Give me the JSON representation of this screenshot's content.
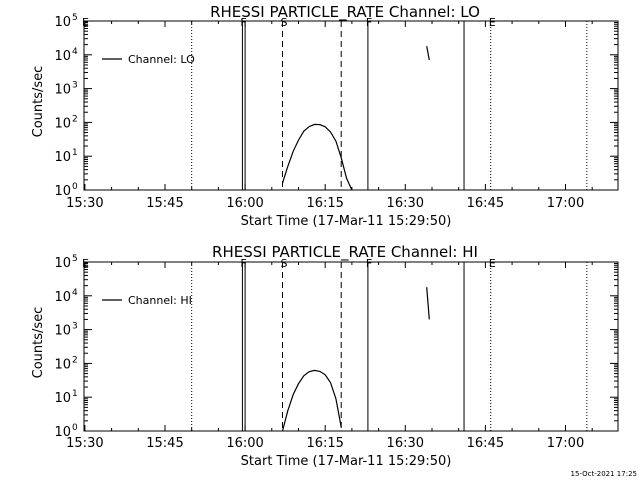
{
  "chart_data": [
    {
      "type": "line",
      "title": "RHESSI PARTICLE_RATE Channel: LO",
      "xlabel": "Start Time (17-Mar-11 15:29:50)",
      "ylabel": "Counts/sec",
      "x_ticks": [
        "15:30",
        "15:45",
        "16:00",
        "16:15",
        "16:30",
        "16:45",
        "17:00"
      ],
      "y_scale": "log",
      "ylim": [
        1,
        100000
      ],
      "y_ticks": [
        {
          "base": "10",
          "exp": "0"
        },
        {
          "base": "10",
          "exp": "1"
        },
        {
          "base": "10",
          "exp": "2"
        },
        {
          "base": "10",
          "exp": "3"
        },
        {
          "base": "10",
          "exp": "4"
        },
        {
          "base": "10",
          "exp": "5"
        }
      ],
      "legend": {
        "placement": "top-left",
        "entries": [
          "Channel: LO"
        ]
      },
      "series": [
        {
          "name": "Channel: LO",
          "segments": [
            [
              [
                "16:07",
                1.6
              ],
              [
                "16:08",
                5
              ],
              [
                "16:09",
                14
              ],
              [
                "16:10",
                30
              ],
              [
                "16:11",
                55
              ],
              [
                "16:12",
                75
              ],
              [
                "16:13",
                87
              ],
              [
                "16:14",
                86
              ],
              [
                "16:15",
                74
              ],
              [
                "16:16",
                52
              ],
              [
                "16:17",
                28
              ],
              [
                "16:18",
                9
              ],
              [
                "16:19",
                2.2
              ],
              [
                "16:20",
                1
              ]
            ],
            [
              [
                "16:34",
                18000
              ],
              [
                "16:34:30",
                7000
              ]
            ]
          ]
        }
      ],
      "vertical_markers": [
        {
          "time": "15:50",
          "style": "dotted",
          "label": ""
        },
        {
          "time": "15:59:30",
          "style": "solid",
          "label": "F"
        },
        {
          "time": "16:00",
          "style": "solid",
          "label": ""
        },
        {
          "time": "16:07",
          "style": "dashed",
          "label": "S"
        },
        {
          "time": "16:18",
          "style": "dashed",
          "label": ""
        },
        {
          "time": "16:23",
          "style": "solid",
          "label": "F"
        },
        {
          "time": "16:41",
          "style": "solid",
          "label": ""
        },
        {
          "time": "16:46",
          "style": "dotted",
          "label": "E"
        },
        {
          "time": "17:04",
          "style": "dotted",
          "label": ""
        }
      ],
      "left_edge_label": "E"
    },
    {
      "type": "line",
      "title": "RHESSI PARTICLE_RATE Channel: HI",
      "xlabel": "Start Time (17-Mar-11 15:29:50)",
      "ylabel": "Counts/sec",
      "x_ticks": [
        "15:30",
        "15:45",
        "16:00",
        "16:15",
        "16:30",
        "16:45",
        "17:00"
      ],
      "y_scale": "log",
      "ylim": [
        1,
        100000
      ],
      "y_ticks": [
        {
          "base": "10",
          "exp": "0"
        },
        {
          "base": "10",
          "exp": "1"
        },
        {
          "base": "10",
          "exp": "2"
        },
        {
          "base": "10",
          "exp": "3"
        },
        {
          "base": "10",
          "exp": "4"
        },
        {
          "base": "10",
          "exp": "5"
        }
      ],
      "legend": {
        "placement": "top-left",
        "entries": [
          "Channel: HI"
        ]
      },
      "series": [
        {
          "name": "Channel: HI",
          "segments": [
            [
              [
                "16:07",
                1
              ],
              [
                "16:08",
                4
              ],
              [
                "16:09",
                12
              ],
              [
                "16:10",
                25
              ],
              [
                "16:11",
                43
              ],
              [
                "16:12",
                57
              ],
              [
                "16:13",
                62
              ],
              [
                "16:14",
                58
              ],
              [
                "16:15",
                46
              ],
              [
                "16:16",
                27
              ],
              [
                "16:17",
                9
              ],
              [
                "16:18",
                1.3
              ]
            ],
            [
              [
                "16:34",
                18000
              ],
              [
                "16:34:30",
                2000
              ]
            ]
          ]
        }
      ],
      "vertical_markers": [
        {
          "time": "15:50",
          "style": "dotted",
          "label": ""
        },
        {
          "time": "15:59:30",
          "style": "solid",
          "label": "F"
        },
        {
          "time": "16:00",
          "style": "solid",
          "label": ""
        },
        {
          "time": "16:07",
          "style": "dashed",
          "label": "S"
        },
        {
          "time": "16:18",
          "style": "dashed",
          "label": ""
        },
        {
          "time": "16:23",
          "style": "solid",
          "label": "F"
        },
        {
          "time": "16:41",
          "style": "solid",
          "label": ""
        },
        {
          "time": "16:46",
          "style": "dotted",
          "label": "E"
        },
        {
          "time": "17:04",
          "style": "dotted",
          "label": ""
        }
      ],
      "left_edge_label": "E"
    }
  ],
  "footer": {
    "timestamp": "15-Oct-2021 17:25"
  },
  "colors": {
    "background": "#ffffff",
    "foreground": "#000000"
  }
}
